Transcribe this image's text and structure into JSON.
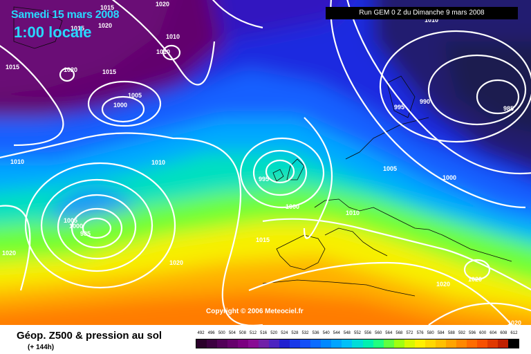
{
  "header": {
    "date": "Samedi 15 mars 2008",
    "time": "1:00 locale",
    "run": "Run GEM 0 Z du Dimanche 9 mars 2008"
  },
  "copyright": "Copyright © 2006 Meteociel.fr",
  "footer": {
    "title": "Géop. Z500 & pression au sol",
    "lead": "(+ 144h)"
  },
  "legend": {
    "values": [
      "492",
      "496",
      "500",
      "504",
      "508",
      "512",
      "516",
      "520",
      "524",
      "528",
      "532",
      "536",
      "540",
      "544",
      "548",
      "552",
      "556",
      "560",
      "564",
      "568",
      "572",
      "576",
      "580",
      "584",
      "588",
      "592",
      "596",
      "600",
      "604",
      "608",
      "612"
    ],
    "colors": [
      "#2a002a",
      "#3c0040",
      "#520058",
      "#66006c",
      "#7a0080",
      "#880c94",
      "#7020a8",
      "#4c24c0",
      "#2020d0",
      "#1838e8",
      "#1450f8",
      "#0c6cff",
      "#0088ff",
      "#00a4ff",
      "#00c0f8",
      "#00dcd8",
      "#00f0b0",
      "#20ff80",
      "#60ff40",
      "#a0ff10",
      "#d8f800",
      "#fff000",
      "#ffd800",
      "#ffc000",
      "#ffa400",
      "#ff8800",
      "#ff6c00",
      "#f85000",
      "#e03800",
      "#c02000",
      "#000000"
    ]
  },
  "isobar_labels": [
    {
      "text": "1015"
    },
    {
      "text": "1020"
    },
    {
      "text": "1015"
    },
    {
      "text": "1020"
    },
    {
      "text": "1010"
    },
    {
      "text": "1010"
    },
    {
      "text": "1015"
    },
    {
      "text": "1020"
    },
    {
      "text": "1015"
    },
    {
      "text": "1005"
    },
    {
      "text": "1000"
    },
    {
      "text": "1010"
    },
    {
      "text": "1010"
    },
    {
      "text": "995"
    },
    {
      "text": "1000"
    },
    {
      "text": "1005"
    },
    {
      "text": "1000"
    },
    {
      "text": "985"
    },
    {
      "text": "1020"
    },
    {
      "text": "1020"
    },
    {
      "text": "1015"
    },
    {
      "text": "1010"
    },
    {
      "text": "1005"
    },
    {
      "text": "1000"
    },
    {
      "text": "995"
    },
    {
      "text": "990"
    },
    {
      "text": "985"
    },
    {
      "text": "1010"
    },
    {
      "text": "1020"
    },
    {
      "text": "1020"
    },
    {
      "text": "1020"
    }
  ]
}
